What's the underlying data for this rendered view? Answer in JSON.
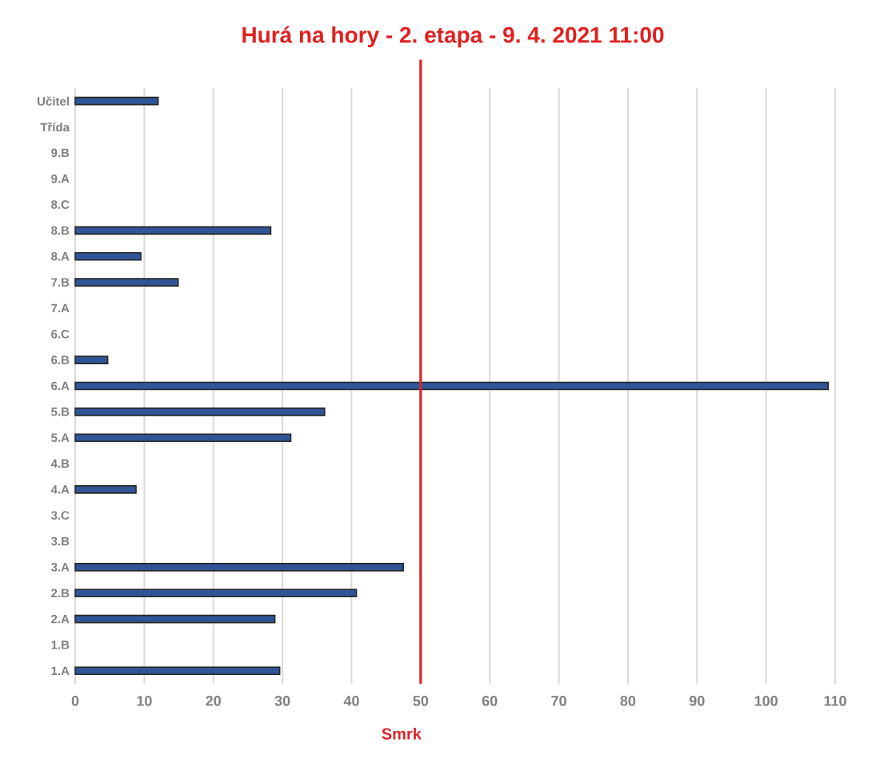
{
  "chart_data": {
    "type": "bar",
    "orientation": "horizontal",
    "title": "Hurá na hory - 2. etapa - 9. 4. 2021 11:00",
    "categories": [
      "Učitel",
      "Třída",
      "9.B",
      "9.A",
      "8.C",
      "8.B",
      "8.A",
      "7.B",
      "7.A",
      "6.C",
      "6.B",
      "6.A",
      "5.B",
      "5.A",
      "4.B",
      "4.A",
      "3.C",
      "3.B",
      "3.A",
      "2.B",
      "2.A",
      "1.B",
      "1.A"
    ],
    "values": [
      12,
      null,
      null,
      null,
      null,
      28.3,
      9.5,
      14.9,
      null,
      null,
      4.7,
      109,
      36.1,
      31.2,
      null,
      8.8,
      null,
      null,
      47.5,
      40.7,
      28.9,
      null,
      29.6
    ],
    "color": "#2f5597",
    "xlim": [
      0,
      110
    ],
    "xticks": [
      0,
      10,
      20,
      30,
      40,
      50,
      60,
      70,
      80,
      90,
      100,
      110
    ],
    "grid": "x",
    "ref_lines": [
      {
        "axis": "x",
        "value": 50,
        "label": "Smrk",
        "color": "#d9262b"
      }
    ]
  }
}
